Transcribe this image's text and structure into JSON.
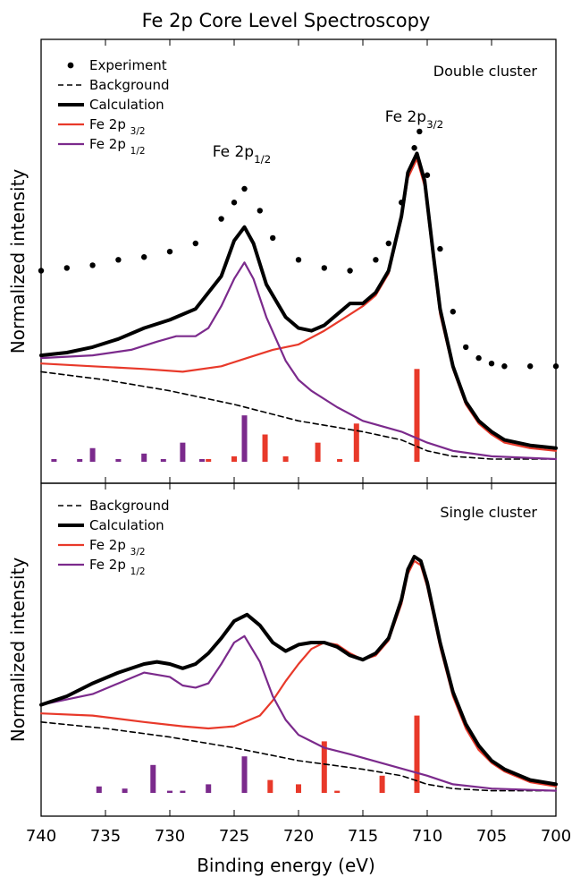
{
  "figure": {
    "title": "Fe 2p Core Level Spectroscopy",
    "xlabel": "Binding energy (eV)",
    "x_ticks": [
      740,
      735,
      730,
      725,
      720,
      715,
      710,
      705,
      700
    ],
    "colors": {
      "experiment": "#000000",
      "background": "#000000",
      "calculation": "#000000",
      "fe2p32": "#e8392a",
      "fe2p12": "#7b2a8c"
    }
  },
  "chart_data": [
    {
      "type": "line",
      "panel_label": "Double cluster",
      "ylabel": "Normalized intensity",
      "xlim": [
        740,
        700
      ],
      "ylim": [
        0,
        1.2
      ],
      "x_reversed": true,
      "y_ticks_shown": false,
      "legend_position": "top-left",
      "peak_labels": [
        {
          "text": "Fe 2p",
          "sub": "1/2",
          "x": 724.2
        },
        {
          "text": "Fe 2p",
          "sub": "3/2",
          "x": 710.8
        }
      ],
      "series": [
        {
          "key": "experiment",
          "name": "Experiment",
          "style": "dots",
          "x": [
            740,
            738,
            736,
            734,
            732,
            730,
            728,
            726,
            725,
            724.2,
            723,
            722,
            720,
            718,
            716,
            714,
            713,
            712,
            711,
            710.6,
            710,
            709,
            708,
            707,
            706,
            705,
            704,
            702,
            700
          ],
          "y": [
            0.7,
            0.71,
            0.72,
            0.74,
            0.75,
            0.77,
            0.8,
            0.89,
            0.95,
            1.0,
            0.92,
            0.82,
            0.74,
            0.71,
            0.7,
            0.74,
            0.8,
            0.95,
            1.15,
            1.21,
            1.05,
            0.78,
            0.55,
            0.42,
            0.38,
            0.36,
            0.35,
            0.35,
            0.35
          ]
        },
        {
          "key": "background",
          "name": "Background",
          "style": "dashed",
          "x": [
            740,
            735,
            730,
            725,
            720,
            715,
            712,
            710,
            708,
            705,
            700
          ],
          "y": [
            0.33,
            0.3,
            0.26,
            0.21,
            0.15,
            0.11,
            0.08,
            0.04,
            0.02,
            0.01,
            0.01
          ]
        },
        {
          "key": "calculation",
          "name": "Calculation",
          "style": "thick",
          "x": [
            740,
            738,
            736,
            734,
            732,
            730,
            728,
            726,
            725,
            724.2,
            723.5,
            722.5,
            721,
            720,
            719,
            718,
            717,
            716,
            715,
            714,
            713,
            712,
            711.5,
            710.8,
            710.2,
            709.5,
            709,
            708,
            707,
            706,
            705,
            704,
            702,
            700
          ],
          "y": [
            0.39,
            0.4,
            0.42,
            0.45,
            0.49,
            0.52,
            0.56,
            0.68,
            0.81,
            0.86,
            0.8,
            0.65,
            0.53,
            0.49,
            0.48,
            0.5,
            0.54,
            0.58,
            0.58,
            0.62,
            0.7,
            0.9,
            1.06,
            1.13,
            1.03,
            0.75,
            0.56,
            0.35,
            0.22,
            0.15,
            0.11,
            0.08,
            0.06,
            0.05
          ]
        },
        {
          "key": "fe2p32",
          "name": "Fe 2p",
          "name_sub": "3/2",
          "style": "line",
          "x": [
            740,
            736,
            732,
            729,
            726,
            724,
            722,
            720,
            718,
            716,
            715,
            714,
            713,
            712,
            711.5,
            710.8,
            710.2,
            709.5,
            709,
            708,
            707,
            706,
            705,
            704,
            702,
            700
          ],
          "y": [
            0.36,
            0.35,
            0.34,
            0.33,
            0.35,
            0.38,
            0.41,
            0.43,
            0.48,
            0.54,
            0.57,
            0.61,
            0.69,
            0.89,
            1.04,
            1.11,
            1.01,
            0.73,
            0.54,
            0.34,
            0.21,
            0.14,
            0.1,
            0.07,
            0.05,
            0.04
          ]
        },
        {
          "key": "fe2p12",
          "name": "Fe 2p",
          "name_sub": "1/2",
          "style": "line",
          "x": [
            740,
            736,
            733,
            731,
            729.5,
            728,
            727,
            726,
            725,
            724.2,
            723.5,
            722.5,
            721,
            720,
            719,
            717,
            715,
            712,
            710,
            708,
            705,
            700
          ],
          "y": [
            0.38,
            0.39,
            0.41,
            0.44,
            0.46,
            0.46,
            0.49,
            0.57,
            0.67,
            0.73,
            0.67,
            0.53,
            0.37,
            0.3,
            0.26,
            0.2,
            0.15,
            0.11,
            0.07,
            0.04,
            0.02,
            0.01
          ]
        }
      ],
      "sticks_fe2p32": {
        "x": [
          727.0,
          725.0,
          722.6,
          721.0,
          718.5,
          716.8,
          715.5,
          710.8
        ],
        "y": [
          0.01,
          0.02,
          0.1,
          0.02,
          0.07,
          0.01,
          0.14,
          0.34
        ]
      },
      "sticks_fe2p12": {
        "x": [
          739.0,
          737.0,
          736.0,
          734.0,
          732.0,
          730.5,
          729.0,
          727.5,
          724.2
        ],
        "y": [
          0.01,
          0.01,
          0.05,
          0.01,
          0.03,
          0.01,
          0.07,
          0.01,
          0.17
        ]
      }
    },
    {
      "type": "line",
      "panel_label": "Single cluster",
      "ylabel": "Normalized intensity",
      "xlim": [
        740,
        700
      ],
      "ylim": [
        0,
        1.2
      ],
      "x_reversed": true,
      "y_ticks_shown": false,
      "legend_position": "top-left",
      "series": [
        {
          "key": "background",
          "name": "Background",
          "style": "dashed",
          "x": [
            740,
            735,
            730,
            725,
            720,
            715,
            712,
            710,
            708,
            705,
            700
          ],
          "y": [
            0.33,
            0.3,
            0.26,
            0.21,
            0.15,
            0.11,
            0.08,
            0.04,
            0.02,
            0.01,
            0.01
          ]
        },
        {
          "key": "calculation",
          "name": "Calculation",
          "style": "thick",
          "x": [
            740,
            738,
            736,
            734,
            732,
            731,
            730,
            729,
            728,
            727,
            726,
            725,
            724,
            723,
            722,
            721,
            720,
            719,
            718,
            717,
            716,
            715,
            714,
            713,
            712,
            711.5,
            711,
            710.5,
            710,
            709,
            708,
            707,
            706,
            705,
            704,
            702,
            700
          ],
          "y": [
            0.41,
            0.45,
            0.51,
            0.56,
            0.6,
            0.61,
            0.6,
            0.58,
            0.6,
            0.65,
            0.72,
            0.8,
            0.83,
            0.78,
            0.7,
            0.66,
            0.69,
            0.7,
            0.7,
            0.68,
            0.64,
            0.62,
            0.65,
            0.72,
            0.9,
            1.04,
            1.1,
            1.08,
            0.98,
            0.7,
            0.47,
            0.32,
            0.22,
            0.15,
            0.11,
            0.06,
            0.04
          ]
        },
        {
          "key": "fe2p32",
          "name": "Fe 2p",
          "name_sub": "3/2",
          "style": "line",
          "x": [
            740,
            736,
            732,
            729,
            727,
            725,
            723,
            722,
            721,
            720,
            719,
            718,
            717,
            716,
            715,
            714,
            713,
            712,
            711.5,
            711,
            710.5,
            710,
            709,
            708,
            707,
            706,
            705,
            704,
            702,
            700
          ],
          "y": [
            0.37,
            0.36,
            0.33,
            0.31,
            0.3,
            0.31,
            0.36,
            0.43,
            0.52,
            0.6,
            0.67,
            0.7,
            0.69,
            0.65,
            0.62,
            0.64,
            0.71,
            0.88,
            1.02,
            1.08,
            1.06,
            0.96,
            0.68,
            0.45,
            0.3,
            0.2,
            0.14,
            0.1,
            0.05,
            0.03
          ]
        },
        {
          "key": "fe2p12",
          "name": "Fe 2p",
          "name_sub": "1/2",
          "style": "line",
          "x": [
            740,
            736,
            734,
            732,
            730,
            729,
            728,
            727,
            726,
            725,
            724.2,
            723,
            722,
            721,
            720,
            719,
            718,
            716,
            713,
            710,
            708,
            705,
            700
          ],
          "y": [
            0.41,
            0.46,
            0.51,
            0.56,
            0.54,
            0.5,
            0.49,
            0.51,
            0.6,
            0.7,
            0.73,
            0.61,
            0.45,
            0.34,
            0.27,
            0.24,
            0.21,
            0.18,
            0.13,
            0.08,
            0.04,
            0.02,
            0.01
          ]
        }
      ],
      "sticks_fe2p32": {
        "x": [
          722.2,
          720.0,
          718.0,
          717.0,
          713.5,
          710.8
        ],
        "y": [
          0.06,
          0.04,
          0.24,
          0.01,
          0.08,
          0.36
        ]
      },
      "sticks_fe2p12": {
        "x": [
          735.5,
          733.5,
          731.3,
          730.0,
          729.0,
          727.0,
          724.2
        ],
        "y": [
          0.03,
          0.02,
          0.13,
          0.01,
          0.01,
          0.04,
          0.17
        ]
      }
    }
  ]
}
